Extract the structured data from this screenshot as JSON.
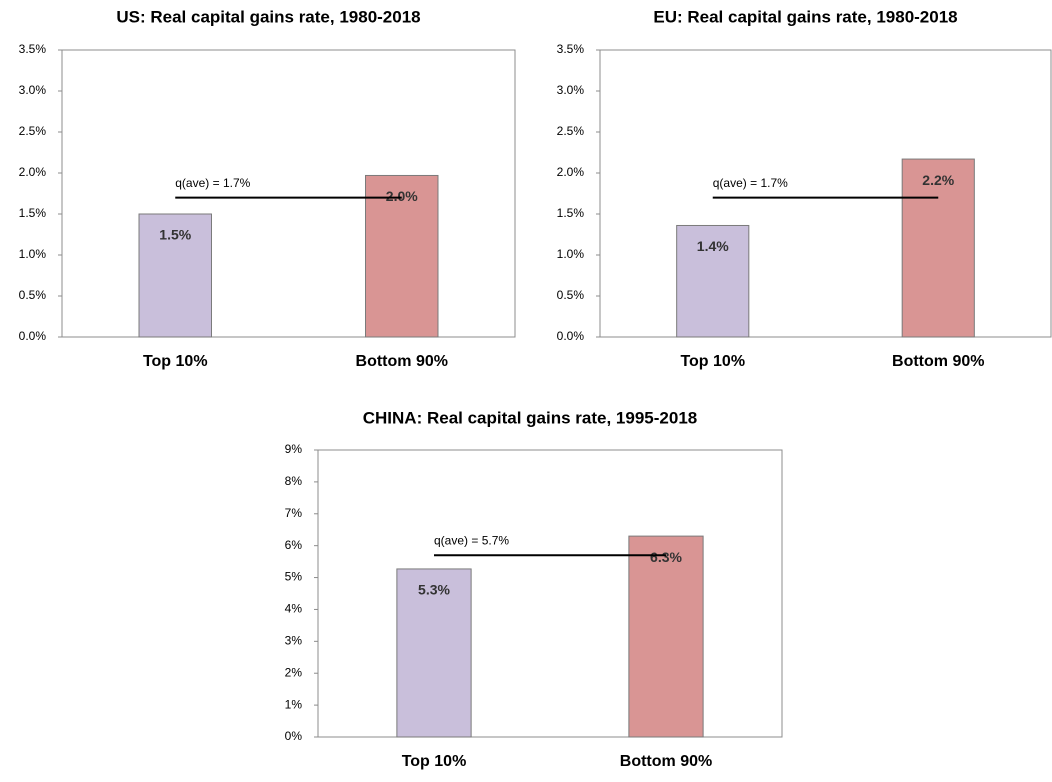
{
  "chart_data": [
    {
      "type": "bar",
      "title": "US: Real capital gains rate, 1980-2018",
      "categories": [
        "Top 10%",
        "Bottom 90%"
      ],
      "values": [
        1.5,
        1.97
      ],
      "value_labels": [
        "1.5%",
        "2.0%"
      ],
      "colors": [
        "#c9bfdb",
        "#d99594"
      ],
      "ylim": [
        0,
        3.5
      ],
      "yticks": [
        {
          "value": 0,
          "label": "0.0%"
        },
        {
          "value": 0.5,
          "label": "0.5%"
        },
        {
          "value": 1,
          "label": "1.0%"
        },
        {
          "value": 1.5,
          "label": "1.5%"
        },
        {
          "value": 2,
          "label": "2.0%"
        },
        {
          "value": 2.5,
          "label": "2.5%"
        },
        {
          "value": 3,
          "label": "3.0%"
        },
        {
          "value": 3.5,
          "label": "3.5%"
        }
      ],
      "reference_line": {
        "value": 1.7,
        "label": "q(ave) = 1.7%"
      }
    },
    {
      "type": "bar",
      "title": "EU: Real capital gains rate, 1980-2018",
      "categories": [
        "Top 10%",
        "Bottom 90%"
      ],
      "values": [
        1.36,
        2.17
      ],
      "value_labels": [
        "1.4%",
        "2.2%"
      ],
      "colors": [
        "#c9bfdb",
        "#d99594"
      ],
      "ylim": [
        0,
        3.5
      ],
      "yticks": [
        {
          "value": 0,
          "label": "0.0%"
        },
        {
          "value": 0.5,
          "label": "0.5%"
        },
        {
          "value": 1,
          "label": "1.0%"
        },
        {
          "value": 1.5,
          "label": "1.5%"
        },
        {
          "value": 2,
          "label": "2.0%"
        },
        {
          "value": 2.5,
          "label": "2.5%"
        },
        {
          "value": 3,
          "label": "3.0%"
        },
        {
          "value": 3.5,
          "label": "3.5%"
        }
      ],
      "reference_line": {
        "value": 1.7,
        "label": "q(ave) = 1.7%"
      }
    },
    {
      "type": "bar",
      "title": "CHINA: Real capital gains rate, 1995-2018",
      "categories": [
        "Top 10%",
        "Bottom 90%"
      ],
      "values": [
        5.27,
        6.3
      ],
      "value_labels": [
        "5.3%",
        "6.3%"
      ],
      "colors": [
        "#c9bfdb",
        "#d99594"
      ],
      "ylim": [
        0,
        9
      ],
      "yticks": [
        {
          "value": 0,
          "label": "0%"
        },
        {
          "value": 1,
          "label": "1%"
        },
        {
          "value": 2,
          "label": "2%"
        },
        {
          "value": 3,
          "label": "3%"
        },
        {
          "value": 4,
          "label": "4%"
        },
        {
          "value": 5,
          "label": "5%"
        },
        {
          "value": 6,
          "label": "6%"
        },
        {
          "value": 7,
          "label": "7%"
        },
        {
          "value": 8,
          "label": "8%"
        },
        {
          "value": 9,
          "label": "9%"
        }
      ],
      "reference_line": {
        "value": 5.7,
        "label": "q(ave) = 5.7%"
      }
    }
  ]
}
